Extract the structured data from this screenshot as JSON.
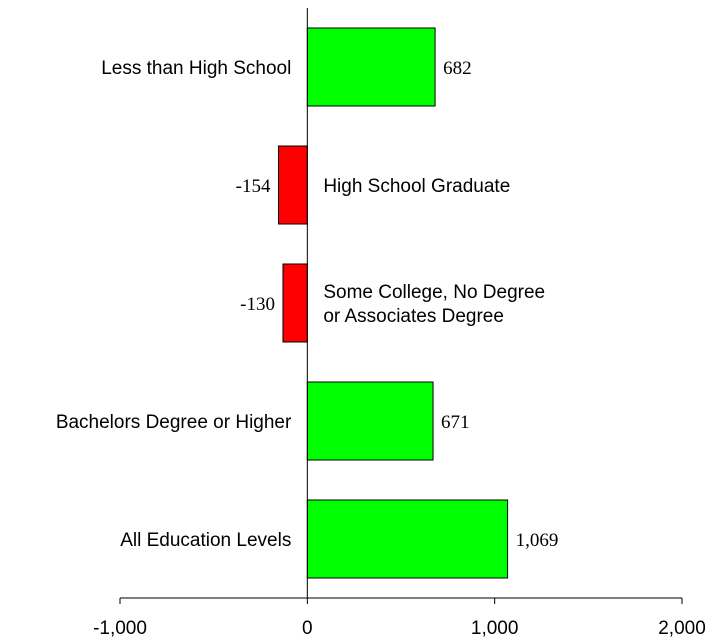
{
  "chart_data": {
    "type": "bar",
    "orientation": "horizontal",
    "title": "",
    "xlabel": "",
    "ylabel": "",
    "xlim": [
      -1000,
      2000
    ],
    "xticks": [
      -1000,
      0,
      1000,
      2000
    ],
    "xtick_labels": [
      "-1,000",
      "0",
      "1,000",
      "2,000"
    ],
    "grid": false,
    "legend": "none",
    "categories": [
      [
        "Less than High School"
      ],
      [
        "High School Graduate"
      ],
      [
        "Some College, No Degree",
        "or Associates Degree"
      ],
      [
        "Bachelors Degree or Higher"
      ],
      [
        "All Education Levels"
      ]
    ],
    "values": [
      682,
      -154,
      -130,
      671,
      1069
    ],
    "value_labels": [
      "682",
      "-154",
      "-130",
      "671",
      "1,069"
    ],
    "colors": {
      "positive": "#00ff00",
      "negative": "#ff0000"
    }
  }
}
